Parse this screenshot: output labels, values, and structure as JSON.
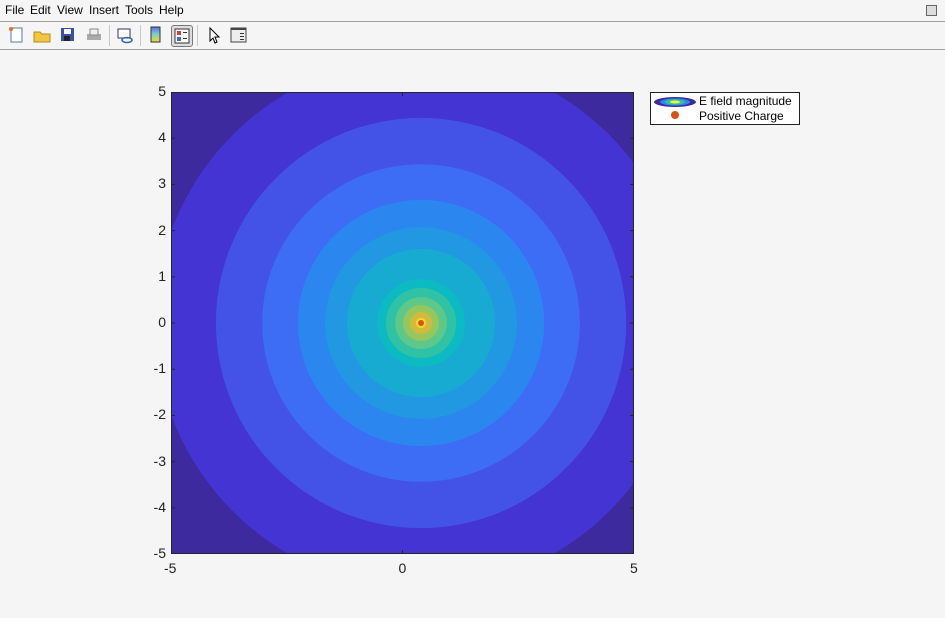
{
  "menu": [
    "File",
    "Edit",
    "View",
    "Insert",
    "Tools",
    "Help"
  ],
  "toolbar": [
    "new-file-icon",
    "open-folder-icon",
    "save-icon",
    "print-icon",
    "link-plot-icon",
    "colorbar-icon",
    "legend-icon",
    "pointer-icon",
    "property-inspector-icon"
  ],
  "chart_data": {
    "type": "contour",
    "xlim": [
      -5,
      5
    ],
    "ylim": [
      -5,
      5
    ],
    "xticks": [
      "-5",
      "0",
      "5"
    ],
    "yticks": [
      "5",
      "4",
      "3",
      "2",
      "1",
      "0",
      "-1",
      "-2",
      "-3",
      "-4",
      "-5"
    ],
    "charge": {
      "x": 0.4,
      "y": 0,
      "color": "#d95319"
    },
    "background_color": "#3d2a9e",
    "contour_levels": [
      {
        "radius": 5.75,
        "color": "#4434d4"
      },
      {
        "radius": 4.43,
        "color": "#4353e8"
      },
      {
        "radius": 3.43,
        "color": "#3d6cf5"
      },
      {
        "radius": 2.66,
        "color": "#2c86ef"
      },
      {
        "radius": 2.07,
        "color": "#2298e3"
      },
      {
        "radius": 1.6,
        "color": "#17abd2"
      },
      {
        "radius": 0.95,
        "color": "#0cbac1"
      },
      {
        "radius": 0.76,
        "color": "#30c2a5"
      },
      {
        "radius": 0.56,
        "color": "#5dc889"
      },
      {
        "radius": 0.39,
        "color": "#96c65e"
      },
      {
        "radius": 0.24,
        "color": "#d0bb3c"
      },
      {
        "radius": 0.11,
        "color": "#f5d92a"
      },
      {
        "radius": 0.05,
        "color": "#f9f71c"
      }
    ],
    "legend": {
      "entries": [
        "E field magnitude",
        "Positive Charge"
      ],
      "placement": "outside-top-right"
    }
  }
}
